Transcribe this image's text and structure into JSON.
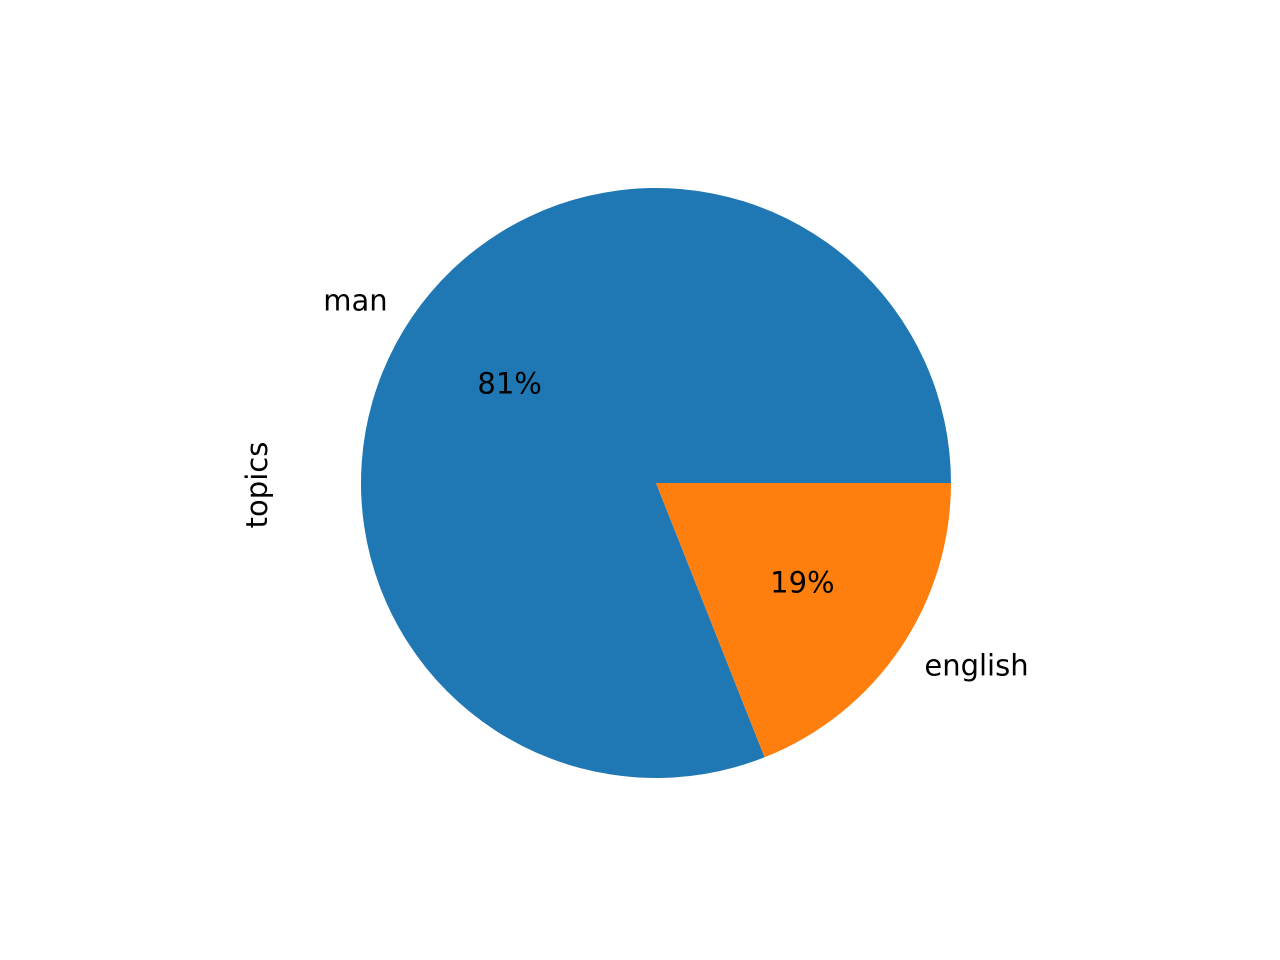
{
  "chart_data": {
    "type": "pie",
    "title": "",
    "ylabel": "topics",
    "start_angle": 0,
    "direction": "counterclockwise",
    "label_distance": 1.1,
    "pct_distance": 0.6,
    "legend": "none",
    "background_color": "#ffffff",
    "text_color": "#000000",
    "slices": [
      {
        "label": "man",
        "value": 81,
        "pct_label": "81%",
        "color": "#1f77b4"
      },
      {
        "label": "english",
        "value": 19,
        "pct_label": "19%",
        "color": "#ff7f0e"
      }
    ]
  }
}
